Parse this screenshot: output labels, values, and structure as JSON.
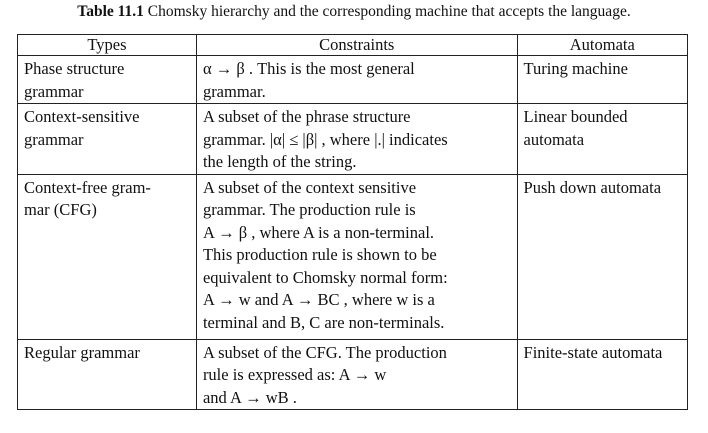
{
  "caption": {
    "number": "Table 11.1",
    "title": "Chomsky hierarchy and the corresponding machine that accepts the language."
  },
  "table": {
    "headers": [
      "Types",
      "Constraints",
      "Automata"
    ],
    "rows": [
      {
        "type_lines": [
          "Phase structure",
          "grammar"
        ],
        "constraint_lines": [
          "α → β . This is the most general",
          "grammar."
        ],
        "automata_lines": [
          "Turing machine"
        ]
      },
      {
        "type_lines": [
          "Context-sensitive",
          "grammar"
        ],
        "constraint_lines": [
          "A subset of the phrase structure",
          "grammar. |α| ≤ |β| , where |.| indicates",
          "the length of the string."
        ],
        "automata_lines": [
          "Linear bounded",
          "automata"
        ]
      },
      {
        "type_lines": [
          "Context-free gram-",
          "mar (CFG)"
        ],
        "constraint_lines": [
          "A subset of the context sensitive",
          "grammar. The production rule is",
          "A → β , where A is a non-terminal.",
          "This production rule is shown to be",
          "equivalent to Chomsky normal form:",
          "A → w and  A → BC , where w is a",
          "terminal and B, C are non-terminals."
        ],
        "automata_lines": [
          "Push down automata"
        ]
      },
      {
        "type_lines": [
          "Regular grammar"
        ],
        "constraint_lines": [
          "A subset of the CFG. The production",
          "rule is expressed as:  A → w",
          "and A → wB ."
        ],
        "automata_lines": [
          "Finite-state automata"
        ]
      }
    ]
  }
}
